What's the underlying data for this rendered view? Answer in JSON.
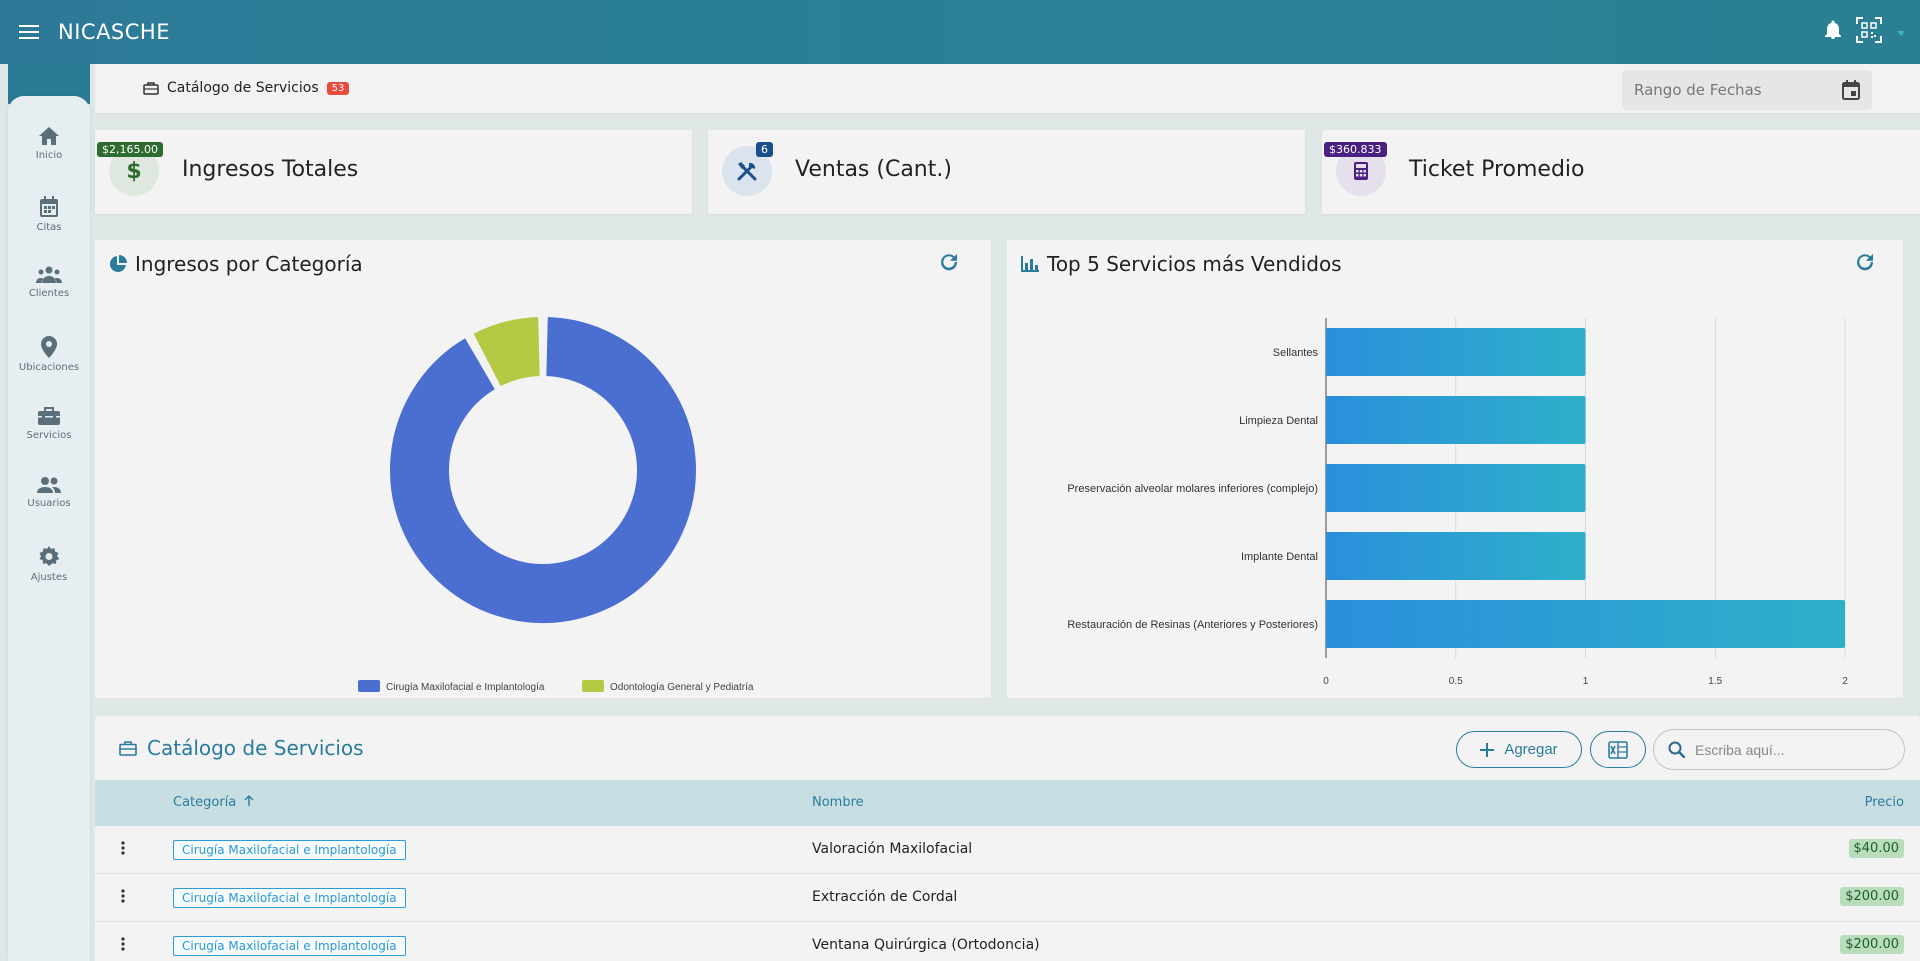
{
  "app": {
    "title": "NICASCHE"
  },
  "sidebar": {
    "items": [
      {
        "label": "Inicio",
        "icon": "home-icon"
      },
      {
        "label": "Citas",
        "icon": "calendar-icon"
      },
      {
        "label": "Clientes",
        "icon": "people-icon"
      },
      {
        "label": "Ubicaciones",
        "icon": "location-pin-icon"
      },
      {
        "label": "Servicios",
        "icon": "briefcase-icon"
      },
      {
        "label": "Usuarios",
        "icon": "users-icon"
      },
      {
        "label": "Ajustes",
        "icon": "gear-icon"
      }
    ]
  },
  "header": {
    "breadcrumb": "Catálogo de Servicios",
    "count": "53",
    "date_range_placeholder": "Rango de Fechas"
  },
  "kpis": [
    {
      "value": "$2,165.00",
      "label": "Ingresos Totales",
      "color": "#2e6b2f",
      "icon": "dollar-icon"
    },
    {
      "value": "6",
      "label": "Ventas (Cant.)",
      "color": "#1a4f8b",
      "icon": "tools-icon"
    },
    {
      "value": "$360.833",
      "label": "Ticket Promedio",
      "color": "#4a2180",
      "icon": "calculator-icon"
    }
  ],
  "panels": {
    "pie_title": "Ingresos por Categoría",
    "bar_title": "Top 5 Servicios más Vendidos"
  },
  "chart_data": [
    {
      "type": "pie",
      "title": "Ingresos por Categoría",
      "categories": [
        "Cirugía Maxilofacial e Implantología",
        "Odontología General y Pediatría"
      ],
      "values": [
        92,
        8
      ],
      "colors": [
        "#4a6fd1",
        "#b5c943"
      ],
      "legend": "bottom"
    },
    {
      "type": "bar",
      "orientation": "horizontal",
      "title": "Top 5 Servicios más Vendidos",
      "categories": [
        "Sellantes",
        "Limpieza Dental",
        "Preservación alveolar molares inferiores (complejo)",
        "Implante Dental",
        "Restauración de Resinas (Anteriores y Posteriores)"
      ],
      "values": [
        1,
        1,
        1,
        1,
        2
      ],
      "xlim": [
        0,
        2
      ],
      "xticks": [
        "0",
        "0.5",
        "1",
        "1.5",
        "2"
      ],
      "grid": true
    }
  ],
  "table": {
    "title": "Catálogo de Servicios",
    "add_label": "Agregar",
    "search_placeholder": "Escriba aquí...",
    "columns": {
      "category": "Categoría",
      "name": "Nombre",
      "price": "Precio"
    },
    "rows": [
      {
        "category": "Cirugía Maxilofacial e Implantología",
        "name": "Valoración Maxilofacial",
        "price": "$40.00"
      },
      {
        "category": "Cirugía Maxilofacial e Implantología",
        "name": "Extracción de Cordal",
        "price": "$200.00"
      },
      {
        "category": "Cirugía Maxilofacial e Implantología",
        "name": "Ventana Quirúrgica (Ortodoncia)",
        "price": "$200.00"
      }
    ]
  }
}
